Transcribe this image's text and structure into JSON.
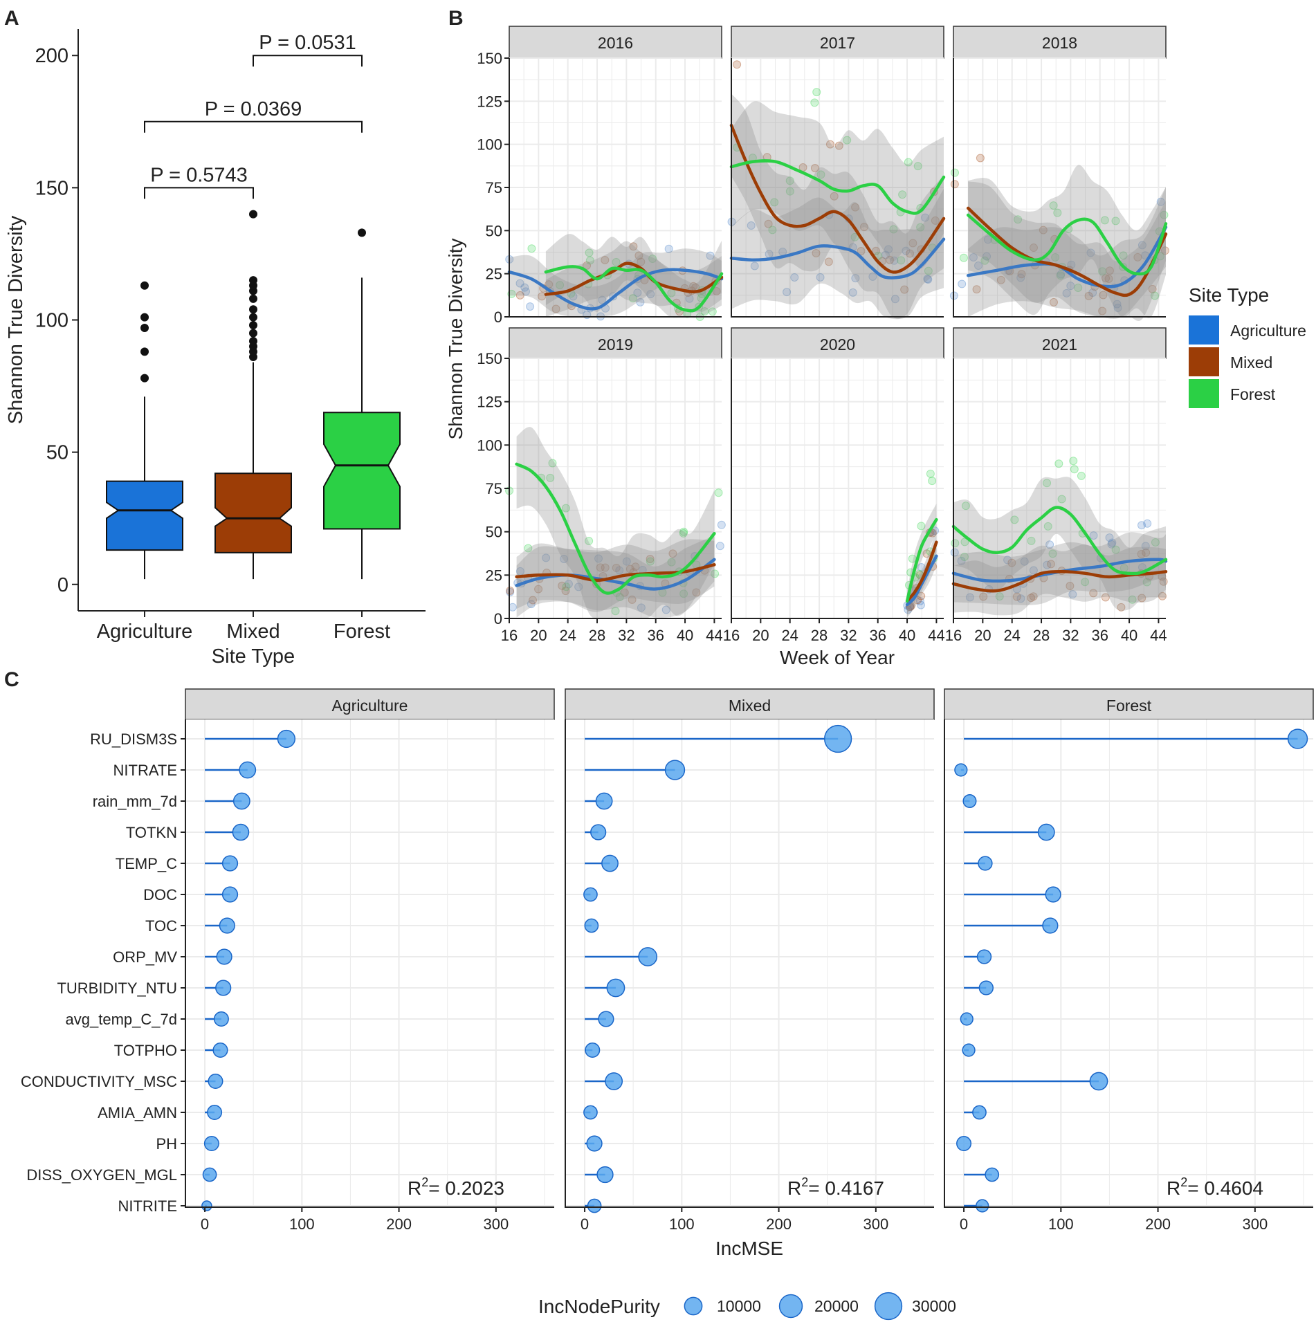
{
  "chart_data": [
    {
      "panel": "A",
      "type": "boxplot",
      "title": "",
      "xlabel": "Site Type",
      "ylabel": "Shannon True Diversity",
      "ylim": [
        -10,
        210
      ],
      "yticks": [
        0,
        50,
        100,
        150,
        200
      ],
      "categories": [
        "Agriculture",
        "Mixed",
        "Forest"
      ],
      "colors": [
        "#1a73d8",
        "#9c3d06",
        "#2bd045"
      ],
      "boxes": [
        {
          "name": "Agriculture",
          "whisker_low": 2,
          "q1": 13,
          "median": 28,
          "q3": 39,
          "whisker_high": 71,
          "notch": [
            25,
            31
          ],
          "outliers": [
            78,
            88,
            97,
            101,
            113
          ]
        },
        {
          "name": "Mixed",
          "whisker_low": 2,
          "q1": 12,
          "median": 25,
          "q3": 42,
          "whisker_high": 84,
          "notch": [
            22,
            29
          ],
          "outliers": [
            86,
            88,
            90,
            92,
            95,
            98,
            101,
            104,
            108,
            111,
            113,
            115,
            140
          ]
        },
        {
          "name": "Forest",
          "whisker_low": 2,
          "q1": 21,
          "median": 45,
          "q3": 65,
          "whisker_high": 116,
          "notch": [
            37,
            53
          ],
          "outliers": [
            133
          ]
        }
      ],
      "comparisons": [
        {
          "from": 0,
          "to": 1,
          "y": 150,
          "label": "P = 0.5743"
        },
        {
          "from": 0,
          "to": 2,
          "y": 175,
          "label": "P = 0.0369"
        },
        {
          "from": 1,
          "to": 2,
          "y": 200,
          "label": "P = 0.0531"
        }
      ]
    },
    {
      "panel": "B",
      "type": "line",
      "xlabel": "Week of Year",
      "ylabel": "Shannon True Diversity",
      "xlim": [
        16,
        45
      ],
      "ylim": [
        0,
        150
      ],
      "xticks": [
        16,
        20,
        24,
        28,
        32,
        36,
        40,
        44
      ],
      "yticks": [
        0,
        25,
        50,
        75,
        100,
        125,
        150
      ],
      "legend_title": "Site Type",
      "legend_position": "right",
      "series_names": [
        "Agriculture",
        "Mixed",
        "Forest"
      ],
      "colors": [
        "#3a78c4",
        "#9c3d06",
        "#2bd045"
      ],
      "facets": [
        {
          "label": "2016",
          "x_range": [
            16,
            45
          ],
          "band": [
            4,
            12
          ],
          "series": [
            {
              "name": "Agriculture",
              "x": [
                16,
                19,
                22,
                25,
                28,
                31,
                34,
                37,
                40,
                43,
                45
              ],
              "y": [
                26,
                22,
                14,
                7,
                5,
                14,
                23,
                27,
                27,
                25,
                22
              ]
            },
            {
              "name": "Mixed",
              "x": [
                21,
                24,
                27,
                30,
                32,
                34,
                36,
                39,
                42,
                45
              ],
              "y": [
                13,
                15,
                21,
                26,
                31,
                28,
                20,
                16,
                15,
                23
              ]
            },
            {
              "name": "Forest",
              "x": [
                21,
                24,
                26,
                28,
                30,
                32,
                34,
                36,
                38,
                40,
                42,
                45
              ],
              "y": [
                26,
                29,
                28,
                22,
                28,
                27,
                27,
                20,
                9,
                4,
                6,
                25
              ]
            }
          ]
        },
        {
          "label": "2017",
          "x_range": [
            16,
            45
          ],
          "band": [
            14,
            22
          ],
          "series": [
            {
              "name": "Agriculture",
              "x": [
                16,
                19,
                22,
                25,
                28,
                31,
                33,
                35,
                37,
                40,
                42,
                45
              ],
              "y": [
                34,
                33,
                34,
                37,
                41,
                40,
                37,
                29,
                23,
                24,
                30,
                45
              ]
            },
            {
              "name": "Mixed",
              "x": [
                16,
                18,
                20,
                22,
                24,
                26,
                28,
                30,
                32,
                34,
                36,
                38,
                40,
                42,
                45
              ],
              "y": [
                111,
                90,
                72,
                58,
                53,
                53,
                57,
                61,
                56,
                44,
                32,
                26,
                29,
                38,
                57
              ]
            },
            {
              "name": "Forest",
              "x": [
                16,
                19,
                22,
                25,
                28,
                30,
                32,
                34,
                36,
                38,
                40,
                42,
                45
              ],
              "y": [
                87,
                90,
                90,
                85,
                79,
                74,
                73,
                76,
                76,
                66,
                61,
                62,
                81
              ]
            }
          ]
        },
        {
          "label": "2018",
          "x_range": [
            16,
            45
          ],
          "band": [
            10,
            20
          ],
          "series": [
            {
              "name": "Agriculture",
              "x": [
                18,
                22,
                26,
                30,
                33,
                36,
                39,
                42,
                45
              ],
              "y": [
                24,
                27,
                30,
                30,
                22,
                18,
                19,
                30,
                52
              ]
            },
            {
              "name": "Mixed",
              "x": [
                18,
                21,
                24,
                27,
                30,
                33,
                36,
                38,
                40,
                42,
                45
              ],
              "y": [
                63,
                51,
                40,
                33,
                30,
                25,
                18,
                14,
                13,
                22,
                48
              ]
            },
            {
              "name": "Forest",
              "x": [
                18,
                21,
                24,
                27,
                29,
                31,
                33,
                35,
                37,
                39,
                41,
                43,
                45
              ],
              "y": [
                59,
                48,
                38,
                33,
                37,
                50,
                56,
                55,
                43,
                30,
                25,
                29,
                54
              ]
            }
          ]
        },
        {
          "label": "2019",
          "x_range": [
            16,
            45
          ],
          "band": [
            6,
            16
          ],
          "series": [
            {
              "name": "Agriculture",
              "x": [
                17,
                20,
                24,
                28,
                32,
                36,
                40,
                44
              ],
              "y": [
                19,
                23,
                25,
                23,
                20,
                17,
                22,
                34
              ]
            },
            {
              "name": "Mixed",
              "x": [
                17,
                20,
                24,
                28,
                32,
                36,
                40,
                44
              ],
              "y": [
                24,
                25,
                25,
                22,
                25,
                26,
                27,
                31
              ]
            },
            {
              "name": "Forest",
              "x": [
                17,
                19,
                21,
                23,
                25,
                27,
                29,
                31,
                33,
                35,
                37,
                39,
                41,
                44
              ],
              "y": [
                89,
                85,
                76,
                62,
                43,
                25,
                15,
                17,
                24,
                25,
                24,
                26,
                33,
                49
              ]
            }
          ]
        },
        {
          "label": "2020",
          "x_range": [
            40,
            44
          ],
          "band": [
            3,
            6
          ],
          "series": [
            {
              "name": "Agriculture",
              "x": [
                40,
                41,
                42,
                43,
                44
              ],
              "y": [
                8,
                12,
                20,
                28,
                36
              ]
            },
            {
              "name": "Mixed",
              "x": [
                40,
                41,
                42,
                43,
                44
              ],
              "y": [
                10,
                15,
                22,
                32,
                44
              ]
            },
            {
              "name": "Forest",
              "x": [
                40,
                41,
                42,
                43,
                44
              ],
              "y": [
                10,
                28,
                42,
                50,
                57
              ]
            }
          ]
        },
        {
          "label": "2021",
          "x_range": [
            16,
            45
          ],
          "band": [
            6,
            14
          ],
          "series": [
            {
              "name": "Agriculture",
              "x": [
                16,
                20,
                24,
                28,
                32,
                36,
                40,
                44,
                45
              ],
              "y": [
                26,
                22,
                22,
                25,
                28,
                30,
                33,
                34,
                33
              ]
            },
            {
              "name": "Mixed",
              "x": [
                16,
                19,
                22,
                25,
                28,
                31,
                34,
                37,
                40,
                43,
                45
              ],
              "y": [
                20,
                17,
                16,
                20,
                26,
                27,
                26,
                24,
                25,
                26,
                27
              ]
            },
            {
              "name": "Forest",
              "x": [
                16,
                18,
                20,
                22,
                24,
                26,
                28,
                30,
                32,
                34,
                36,
                38,
                40,
                42,
                45
              ],
              "y": [
                53,
                46,
                40,
                38,
                41,
                51,
                58,
                64,
                60,
                49,
                37,
                28,
                26,
                27,
                34
              ]
            }
          ]
        }
      ]
    },
    {
      "panel": "C",
      "type": "lollipop",
      "xlabel": "IncMSE",
      "xlim": [
        -20,
        360
      ],
      "xticks": [
        0,
        100,
        200,
        300
      ],
      "size_legend_title": "IncNodePurity",
      "size_legend_values": [
        10000,
        20000,
        30000
      ],
      "variables": [
        "RU_DISM3S",
        "NITRATE",
        "rain_mm_7d",
        "TOTKN",
        "TEMP_C",
        "DOC",
        "TOC",
        "ORP_MV",
        "TURBIDITY_NTU",
        "avg_temp_C_7d",
        "TOTPHO",
        "CONDUCTIVITY_MSC",
        "AMIA_AMN",
        "PH",
        "DISS_OXYGEN_MGL",
        "NITRITE"
      ],
      "facets": [
        {
          "label": "Agriculture",
          "r2": "= 0.2023",
          "incmse": [
            84,
            44,
            38,
            37,
            26,
            26,
            23,
            20,
            19,
            17,
            16,
            11,
            10,
            7,
            5,
            2
          ],
          "node_purity": [
            9500,
            8000,
            8000,
            7800,
            6500,
            6500,
            6500,
            6500,
            6500,
            5500,
            5500,
            5500,
            5500,
            5500,
            4500,
            1500
          ]
        },
        {
          "label": "Mixed",
          "r2": "= 0.4167",
          "incmse": [
            261,
            93,
            20,
            14,
            26,
            6,
            7,
            65,
            32,
            22,
            8,
            30,
            6,
            10,
            21,
            10
          ],
          "node_purity": [
            30000,
            13000,
            8000,
            6500,
            8000,
            4500,
            4500,
            11000,
            10000,
            6500,
            5500,
            9000,
            4500,
            6500,
            7500,
            4500
          ]
        },
        {
          "label": "Forest",
          "r2": "= 0.4604",
          "incmse": [
            344,
            -3,
            6,
            85,
            22,
            92,
            89,
            21,
            23,
            3,
            5,
            139,
            16,
            0,
            29,
            19
          ],
          "node_purity": [
            13000,
            3500,
            4000,
            8000,
            5000,
            6500,
            6500,
            5000,
            5000,
            3500,
            3500,
            10000,
            4500,
            5500,
            4500,
            3500
          ]
        }
      ]
    }
  ],
  "panel_letters": [
    "A",
    "B",
    "C"
  ],
  "r2_symbol": "R",
  "r2_superscript": "2",
  "colors": {
    "agriculture": "#1a73d8",
    "mixed": "#9c3d06",
    "forest": "#2bd045",
    "smooth_agriculture": "#3a78c4",
    "band": "#8f8f8f",
    "lollipop": "#1a66c8",
    "dot": "#5aa8ef",
    "strip": "#d9d9d9",
    "grid": "#ebebeb"
  }
}
